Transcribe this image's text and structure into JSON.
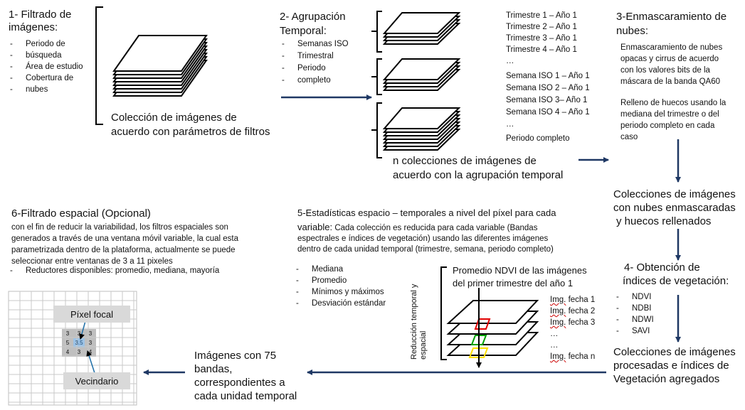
{
  "step1": {
    "title_lines": [
      "1- Filtrado de",
      "imágenes:"
    ],
    "items": [
      "Periodo de",
      "búsqueda",
      "Área de estudio",
      "Cobertura de",
      "nubes"
    ],
    "caption_lines": [
      "Colección de imágenes de",
      "acuerdo con parámetros de filtros"
    ]
  },
  "step2": {
    "title_lines": [
      "2- Agrupación",
      "Temporal:"
    ],
    "items": [
      "Semanas ISO",
      "Trimestral",
      "Periodo",
      "completo"
    ],
    "trimestres": [
      "Trimestre 1 – Año 1",
      "Trimestre 2 – Año 1",
      "Trimestre 3 – Año 1",
      "Trimestre 4 – Año 1",
      "…"
    ],
    "semanas": [
      "Semana ISO 1 – Año 1",
      "Semana ISO 2 – Año 1",
      "Semana ISO 3– Año 1",
      "Semana ISO 4 – Año 1",
      "…"
    ],
    "periodo": "Periodo completo",
    "caption_lines": [
      "n colecciones de imágenes de",
      "acuerdo con la agrupación temporal"
    ]
  },
  "step3": {
    "title_lines": [
      "3-Enmascaramiento de",
      "nubes:"
    ],
    "desc1_lines": [
      "Enmascaramiento de nubes",
      "opacas y cirrus de acuerdo",
      "con los valores bits de la",
      "máscara de la banda QA60"
    ],
    "desc2_lines": [
      "Relleno de huecos usando la",
      "mediana del trimestre o del",
      "periodo completo en cada",
      "caso"
    ],
    "result_lines": [
      "Colecciones de imágenes",
      "con nubes enmascaradas",
      "y huecos rellenados"
    ]
  },
  "step4": {
    "title_lines": [
      "4- Obtención de",
      "índices de vegetación:"
    ],
    "items": [
      "NDVI",
      "NDBI",
      "NDWI",
      "SAVI"
    ],
    "result_lines": [
      "Colecciones de imágenes",
      "procesadas e índices de",
      "Vegetación agregados"
    ]
  },
  "step5": {
    "title_line1": "5-Estadísticas  espacio – temporales a nivel del píxel para cada",
    "title_line2_bold": "variable:",
    "title_line2_rest": " Cada colección es reducida para cada variable (Bandas",
    "desc_lines": [
      "espectrales e índices de vegetación) usando las diferentes imágenes",
      "dentro de cada unidad temporal (trimestre, semana, periodo completo)"
    ],
    "items": [
      "Mediana",
      "Promedio",
      "Mínimos y máximos",
      "Desviación estándar"
    ],
    "example_lines": [
      "Promedio NDVI de las imágenes",
      "del primer trimestre del año 1"
    ],
    "vertical_lines": [
      "Reducción temporal y",
      "espacial"
    ],
    "img_prefix": "Img.",
    "img_labels": [
      " fecha 1",
      " fecha 2",
      " fecha 3",
      "…",
      "…",
      " fecha n"
    ],
    "result_lines": [
      "Imágenes con 75",
      "bandas,",
      "correspondientes a",
      "cada unidad temporal"
    ]
  },
  "step6": {
    "title": "6-Filtrado espacial (Opcional)",
    "desc_lines": [
      "con el fin de reducir la variabilidad, los filtros espaciales son",
      "generados a través de una ventana móvil variable, la cual esta",
      "parametrizada dentro de la plataforma, actualmente se puede",
      "seleccionar entre ventanas de 3 a 11 pixeles"
    ],
    "reducers": "Reductores disponibles: promedio, mediana, mayoría",
    "focal_label": "Píxel focal",
    "neighbor_label": "Vecindario",
    "grid_values": [
      "3",
      "3",
      "3",
      "5",
      "3.5",
      "3",
      "4",
      "3",
      "4"
    ]
  },
  "colors": {
    "arrow": "#1f3864",
    "stack": "#000000",
    "focal_cell": "#9dc3e6",
    "neighbor_cell": "#bfbfbf",
    "box": "#d9d9d9",
    "red_frame": "#e00000",
    "green_frame": "#00a000",
    "yellow_frame": "#ffe000"
  }
}
